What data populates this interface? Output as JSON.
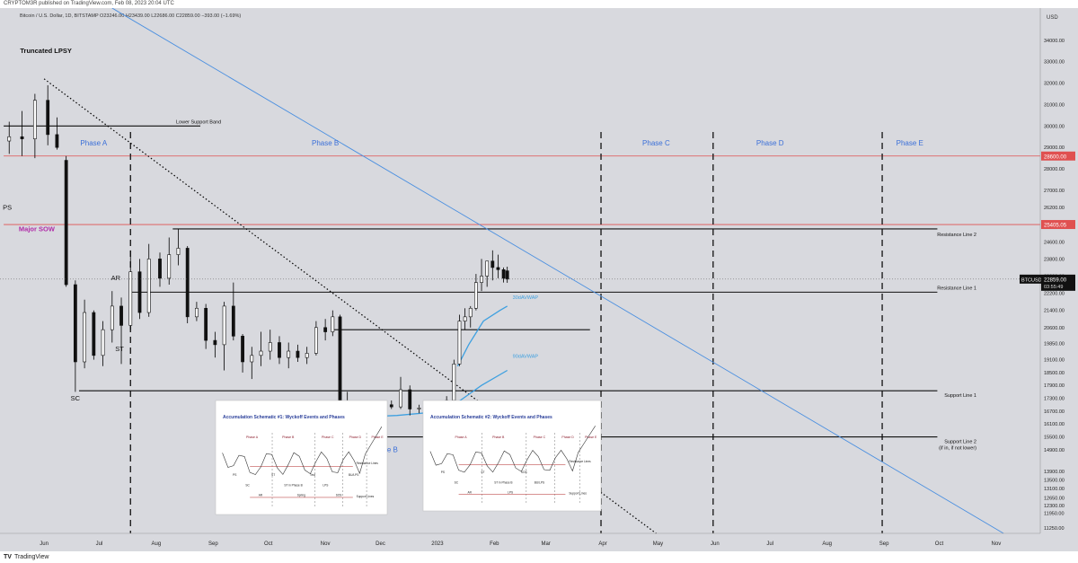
{
  "header": {
    "published_by": "CRYPTOM3R published on TradingView.com, Feb 08, 2023 20:04 UTC",
    "symbol_line": "Bitcoin / U.S. Dollar, 1D, BITSTAMP  O23246.00  H23439.00  L22686.00  C22859.00  −393.00 (−1.69%)"
  },
  "footer": {
    "brand_icon": "tradingview-logo-icon",
    "brand": "TradingView"
  },
  "colors": {
    "background": "#d8d9de",
    "candle": "#000000",
    "trendline_blue": "#4a8fe0",
    "vwap": "#3ea0e0",
    "red_line": "#e05050",
    "price_label_red": "#e05050",
    "current_price_bg": "#111111",
    "phase_text": "#3a6fd8",
    "major_sow": "#b02aa8"
  },
  "chart_data": {
    "type": "candlestick",
    "symbol": "BTCUSD",
    "timeframe": "1D",
    "exchange": "BITSTAMP",
    "ylim": [
      11000,
      35500
    ],
    "price_scale_label": "USD",
    "y_ticks": [
      11250,
      11950,
      12300,
      12650,
      13100,
      13500,
      13900,
      14900,
      15500,
      16100,
      16700,
      17300,
      17900,
      18500,
      19100,
      19850,
      20600,
      21400,
      22200,
      23000,
      23800,
      24600,
      25400,
      26200,
      27000,
      28000,
      29000,
      30000,
      31000,
      32000,
      33000,
      34000
    ],
    "y_tick_labels": [
      "11250.00",
      "11950.00",
      "12300.00",
      "12650.00",
      "13100.00",
      "13500.00",
      "13900.00",
      "14900.00",
      "15500.00",
      "16100.00",
      "16700.00",
      "17300.00",
      "17900.00",
      "18500.00",
      "19100.00",
      "19850.00",
      "20600.00",
      "21400.00",
      "22200.00",
      "23000.00",
      "23800.00",
      "24600.00",
      "25400.00",
      "26200.00",
      "27000.00",
      "28000.00",
      "29000.00",
      "30000.00",
      "31000.00",
      "32000.00",
      "33000.00",
      "34000.00"
    ],
    "x_ticks": [
      "Jun",
      "Jul",
      "Aug",
      "Sep",
      "Oct",
      "Nov",
      "Dec",
      "2023",
      "Feb",
      "Mar",
      "Apr",
      "May",
      "Jun",
      "Jul",
      "Aug",
      "Sep",
      "Oct",
      "Nov"
    ],
    "x_tick_dates": [
      "2022-06-01",
      "2022-07-01",
      "2022-08-01",
      "2022-09-01",
      "2022-10-01",
      "2022-11-01",
      "2022-12-01",
      "2023-01-01",
      "2023-02-01",
      "2023-03-01",
      "2023-04-01",
      "2023-05-01",
      "2023-06-01",
      "2023-07-01",
      "2023-08-01",
      "2023-09-01",
      "2023-10-01",
      "2023-11-01"
    ],
    "current_price": {
      "value": 22859.0,
      "label": "22859.00",
      "countdown": "03:55:49",
      "symbol": "BTCUSD"
    },
    "price_labels": [
      {
        "value": 28600,
        "label": "28600.00"
      },
      {
        "value": 25405,
        "label": "25405.05"
      }
    ],
    "candles": [
      {
        "x": "2022-05-13",
        "o": 29300,
        "h": 30200,
        "l": 28700,
        "c": 29500
      },
      {
        "x": "2022-05-20",
        "o": 29500,
        "h": 30700,
        "l": 28600,
        "c": 29400
      },
      {
        "x": "2022-05-27",
        "o": 29400,
        "h": 31500,
        "l": 28500,
        "c": 31200
      },
      {
        "x": "2022-06-03",
        "o": 31200,
        "h": 31900,
        "l": 29100,
        "c": 29600
      },
      {
        "x": "2022-06-08",
        "o": 29600,
        "h": 30400,
        "l": 28900,
        "c": 29000
      },
      {
        "x": "2022-06-13",
        "o": 28400,
        "h": 28600,
        "l": 22500,
        "c": 22600
      },
      {
        "x": "2022-06-18",
        "o": 22600,
        "h": 22800,
        "l": 17600,
        "c": 19000
      },
      {
        "x": "2022-06-23",
        "o": 19000,
        "h": 21900,
        "l": 18700,
        "c": 21300
      },
      {
        "x": "2022-06-28",
        "o": 21300,
        "h": 21400,
        "l": 19100,
        "c": 19300
      },
      {
        "x": "2022-07-03",
        "o": 19300,
        "h": 20900,
        "l": 18800,
        "c": 20500
      },
      {
        "x": "2022-07-08",
        "o": 20500,
        "h": 22300,
        "l": 19900,
        "c": 21600
      },
      {
        "x": "2022-07-13",
        "o": 21600,
        "h": 22000,
        "l": 18900,
        "c": 20700
      },
      {
        "x": "2022-07-18",
        "o": 20700,
        "h": 24200,
        "l": 20500,
        "c": 23200
      },
      {
        "x": "2022-07-23",
        "o": 23200,
        "h": 23800,
        "l": 21000,
        "c": 21300
      },
      {
        "x": "2022-07-28",
        "o": 21300,
        "h": 24500,
        "l": 21100,
        "c": 23800
      },
      {
        "x": "2022-08-03",
        "o": 23800,
        "h": 24100,
        "l": 22500,
        "c": 22900
      },
      {
        "x": "2022-08-08",
        "o": 22900,
        "h": 24800,
        "l": 22600,
        "c": 24000
      },
      {
        "x": "2022-08-13",
        "o": 24000,
        "h": 25200,
        "l": 23500,
        "c": 24300
      },
      {
        "x": "2022-08-18",
        "o": 24300,
        "h": 24400,
        "l": 20800,
        "c": 21100
      },
      {
        "x": "2022-08-23",
        "o": 21100,
        "h": 21800,
        "l": 20900,
        "c": 21500
      },
      {
        "x": "2022-08-28",
        "o": 21500,
        "h": 21700,
        "l": 19600,
        "c": 20000
      },
      {
        "x": "2022-09-02",
        "o": 20000,
        "h": 20400,
        "l": 19200,
        "c": 19800
      },
      {
        "x": "2022-09-07",
        "o": 19800,
        "h": 21800,
        "l": 18600,
        "c": 21600
      },
      {
        "x": "2022-09-12",
        "o": 21600,
        "h": 22700,
        "l": 20000,
        "c": 20200
      },
      {
        "x": "2022-09-17",
        "o": 20200,
        "h": 20300,
        "l": 18500,
        "c": 19000
      },
      {
        "x": "2022-09-22",
        "o": 19000,
        "h": 19700,
        "l": 18200,
        "c": 19300
      },
      {
        "x": "2022-09-27",
        "o": 19300,
        "h": 20400,
        "l": 18800,
        "c": 19500
      },
      {
        "x": "2022-10-02",
        "o": 19500,
        "h": 20500,
        "l": 19100,
        "c": 19900
      },
      {
        "x": "2022-10-07",
        "o": 19900,
        "h": 20200,
        "l": 18900,
        "c": 19200
      },
      {
        "x": "2022-10-12",
        "o": 19200,
        "h": 19900,
        "l": 18700,
        "c": 19500
      },
      {
        "x": "2022-10-17",
        "o": 19500,
        "h": 19800,
        "l": 19000,
        "c": 19200
      },
      {
        "x": "2022-10-22",
        "o": 19200,
        "h": 19700,
        "l": 18900,
        "c": 19400
      },
      {
        "x": "2022-10-27",
        "o": 19400,
        "h": 20900,
        "l": 19300,
        "c": 20600
      },
      {
        "x": "2022-11-01",
        "o": 20600,
        "h": 21000,
        "l": 20000,
        "c": 20400
      },
      {
        "x": "2022-11-05",
        "o": 20400,
        "h": 21400,
        "l": 20200,
        "c": 21100
      },
      {
        "x": "2022-11-09",
        "o": 21100,
        "h": 21200,
        "l": 16800,
        "c": 17100
      },
      {
        "x": "2022-11-13",
        "o": 17100,
        "h": 17600,
        "l": 15500,
        "c": 16400
      },
      {
        "x": "2022-11-18",
        "o": 16400,
        "h": 17100,
        "l": 15800,
        "c": 16600
      },
      {
        "x": "2022-11-22",
        "o": 16600,
        "h": 16800,
        "l": 15600,
        "c": 16200
      },
      {
        "x": "2022-11-27",
        "o": 16200,
        "h": 16900,
        "l": 16000,
        "c": 16600
      },
      {
        "x": "2022-12-02",
        "o": 16600,
        "h": 17200,
        "l": 16500,
        "c": 17000
      },
      {
        "x": "2022-12-07",
        "o": 17000,
        "h": 17200,
        "l": 16800,
        "c": 16900
      },
      {
        "x": "2022-12-12",
        "o": 16900,
        "h": 18300,
        "l": 16800,
        "c": 17700
      },
      {
        "x": "2022-12-17",
        "o": 17700,
        "h": 17900,
        "l": 16500,
        "c": 16800
      },
      {
        "x": "2022-12-22",
        "o": 16800,
        "h": 17000,
        "l": 16600,
        "c": 16850
      },
      {
        "x": "2022-12-27",
        "o": 16850,
        "h": 17000,
        "l": 16300,
        "c": 16550
      },
      {
        "x": "2023-01-01",
        "o": 16550,
        "h": 16900,
        "l": 16500,
        "c": 16800
      },
      {
        "x": "2023-01-06",
        "o": 16800,
        "h": 17400,
        "l": 16700,
        "c": 17200
      },
      {
        "x": "2023-01-10",
        "o": 17200,
        "h": 19100,
        "l": 17150,
        "c": 18900
      },
      {
        "x": "2023-01-13",
        "o": 18900,
        "h": 21200,
        "l": 18800,
        "c": 20900
      },
      {
        "x": "2023-01-16",
        "o": 20900,
        "h": 21500,
        "l": 20500,
        "c": 21100
      },
      {
        "x": "2023-01-19",
        "o": 21100,
        "h": 21600,
        "l": 20600,
        "c": 21500
      },
      {
        "x": "2023-01-22",
        "o": 21500,
        "h": 23100,
        "l": 21400,
        "c": 22700
      },
      {
        "x": "2023-01-25",
        "o": 22700,
        "h": 23800,
        "l": 22300,
        "c": 23000
      },
      {
        "x": "2023-01-28",
        "o": 23000,
        "h": 23600,
        "l": 22500,
        "c": 23700
      },
      {
        "x": "2023-01-31",
        "o": 23700,
        "h": 24200,
        "l": 22800,
        "c": 23400
      },
      {
        "x": "2023-02-03",
        "o": 23400,
        "h": 24000,
        "l": 22900,
        "c": 23300
      },
      {
        "x": "2023-02-06",
        "o": 23300,
        "h": 23400,
        "l": 22700,
        "c": 22900
      },
      {
        "x": "2023-02-08",
        "o": 23246,
        "h": 23439,
        "l": 22686,
        "c": 22859
      }
    ],
    "horizontal_levels": [
      {
        "name": "Lower Support Band",
        "value": 30000,
        "x_start": "2022-05-10",
        "x_end": "2022-08-25"
      },
      {
        "name": "red level",
        "value": 28600,
        "x_start": "2022-05-10",
        "x_end": "2023-11-30",
        "color": "red_line"
      },
      {
        "name": "red level 2",
        "value": 25405,
        "x_start": "2022-05-10",
        "x_end": "2023-11-30",
        "color": "red_line"
      },
      {
        "name": "Resistance Line 2",
        "value": 25200,
        "x_start": "2022-08-10",
        "x_end": "2023-09-30"
      },
      {
        "name": "Resistance Line 1",
        "value": 22250,
        "x_start": "2022-07-18",
        "x_end": "2023-09-30"
      },
      {
        "name": "mid level",
        "value": 20500,
        "x_start": "2022-11-05",
        "x_end": "2023-03-25"
      },
      {
        "name": "Support Line 1",
        "value": 17650,
        "x_start": "2022-06-20",
        "x_end": "2023-09-30"
      },
      {
        "name": "Support Line 2 (if in, if not lower)",
        "value": 15500,
        "x_start": "2022-11-24",
        "x_end": "2023-09-30"
      }
    ],
    "vertical_phase_dividers": [
      "2022-07-18",
      "2023-03-31",
      "2023-05-31",
      "2023-08-31"
    ],
    "phase_labels": [
      {
        "label": "Phase A",
        "x": "2022-06-28"
      },
      {
        "label": "Phase B",
        "x": "2022-11-01"
      },
      {
        "label": "Phase C",
        "x": "2023-04-30"
      },
      {
        "label": "Phase D",
        "x": "2023-07-01"
      },
      {
        "label": "Phase E",
        "x": "2023-09-15"
      }
    ],
    "annotations": [
      {
        "label": "Truncated LPSY",
        "x": "2022-06-02",
        "y": 33400
      },
      {
        "label": "PS",
        "x": "2022-05-12",
        "y": 26100
      },
      {
        "label": "Major SOW",
        "x": "2022-05-28",
        "y": 25100
      },
      {
        "label": "AR",
        "x": "2022-07-10",
        "y": 22800
      },
      {
        "label": "ST",
        "x": "2022-07-12",
        "y": 19500
      },
      {
        "label": "SC",
        "x": "2022-06-18",
        "y": 17200
      },
      {
        "label": "ST in Phase B",
        "x": "2022-11-28",
        "y": 14800
      }
    ],
    "trendlines": [
      {
        "name": "blue descending trendline",
        "style": "solid",
        "color": "trendline_blue",
        "from": {
          "x": "2022-07-08",
          "y": 35500
        },
        "to": {
          "x": "2023-11-05",
          "y": 11000
        }
      },
      {
        "name": "dotted descending trendline",
        "style": "dotted",
        "color": "candle",
        "from": {
          "x": "2022-06-01",
          "y": 32200
        },
        "to": {
          "x": "2023-04-30",
          "y": 11000
        }
      }
    ],
    "vwaps": [
      {
        "name": "30dAVWAP",
        "label": "30dAVWAP",
        "points": [
          {
            "x": "2023-01-12",
            "y": 18800
          },
          {
            "x": "2023-01-18",
            "y": 19800
          },
          {
            "x": "2023-01-26",
            "y": 20900
          },
          {
            "x": "2023-02-04",
            "y": 21400
          },
          {
            "x": "2023-02-08",
            "y": 21600
          }
        ]
      },
      {
        "name": "90dAVWAP",
        "label": "90dAVWAP",
        "points": [
          {
            "x": "2022-11-12",
            "y": 16400
          },
          {
            "x": "2022-12-10",
            "y": 16500
          },
          {
            "x": "2023-01-05",
            "y": 16700
          },
          {
            "x": "2023-01-15",
            "y": 17300
          },
          {
            "x": "2023-01-25",
            "y": 17900
          },
          {
            "x": "2023-02-08",
            "y": 18600
          }
        ]
      }
    ],
    "level_labels": [
      {
        "label": "Lower Support Band"
      },
      {
        "label": "Resistance Line 2"
      },
      {
        "label": "Resistance Line 1"
      },
      {
        "label": "Support Line 1"
      },
      {
        "label": "Support Line 2"
      },
      {
        "label": "(if in, if not lower)"
      }
    ]
  },
  "insets": [
    {
      "title": "Accumulation Schematic #1: Wyckoff Events and Phases",
      "phases": [
        "Phase A",
        "Phase B",
        "Phase C",
        "Phase D",
        "Phase E"
      ],
      "events": [
        "PS",
        "SC",
        "AR",
        "ST",
        "ST in Phase B",
        "Spring",
        "Test",
        "LPS",
        "SOS",
        "BU/LPS"
      ],
      "side_labels": [
        "Resistance Lines",
        "Support Lines"
      ]
    },
    {
      "title": "Accumulation Schematic #2: Wyckoff Events and Phases",
      "phases": [
        "Phase A",
        "Phase B",
        "Phase C",
        "Phase D",
        "Phase E"
      ],
      "events": [
        "PS",
        "SC",
        "AR",
        "ST",
        "ST in Phase B",
        "LPS",
        "SOS",
        "BU/LPS"
      ],
      "side_labels": [
        "Resistance Lines",
        "Support Lines"
      ]
    }
  ]
}
